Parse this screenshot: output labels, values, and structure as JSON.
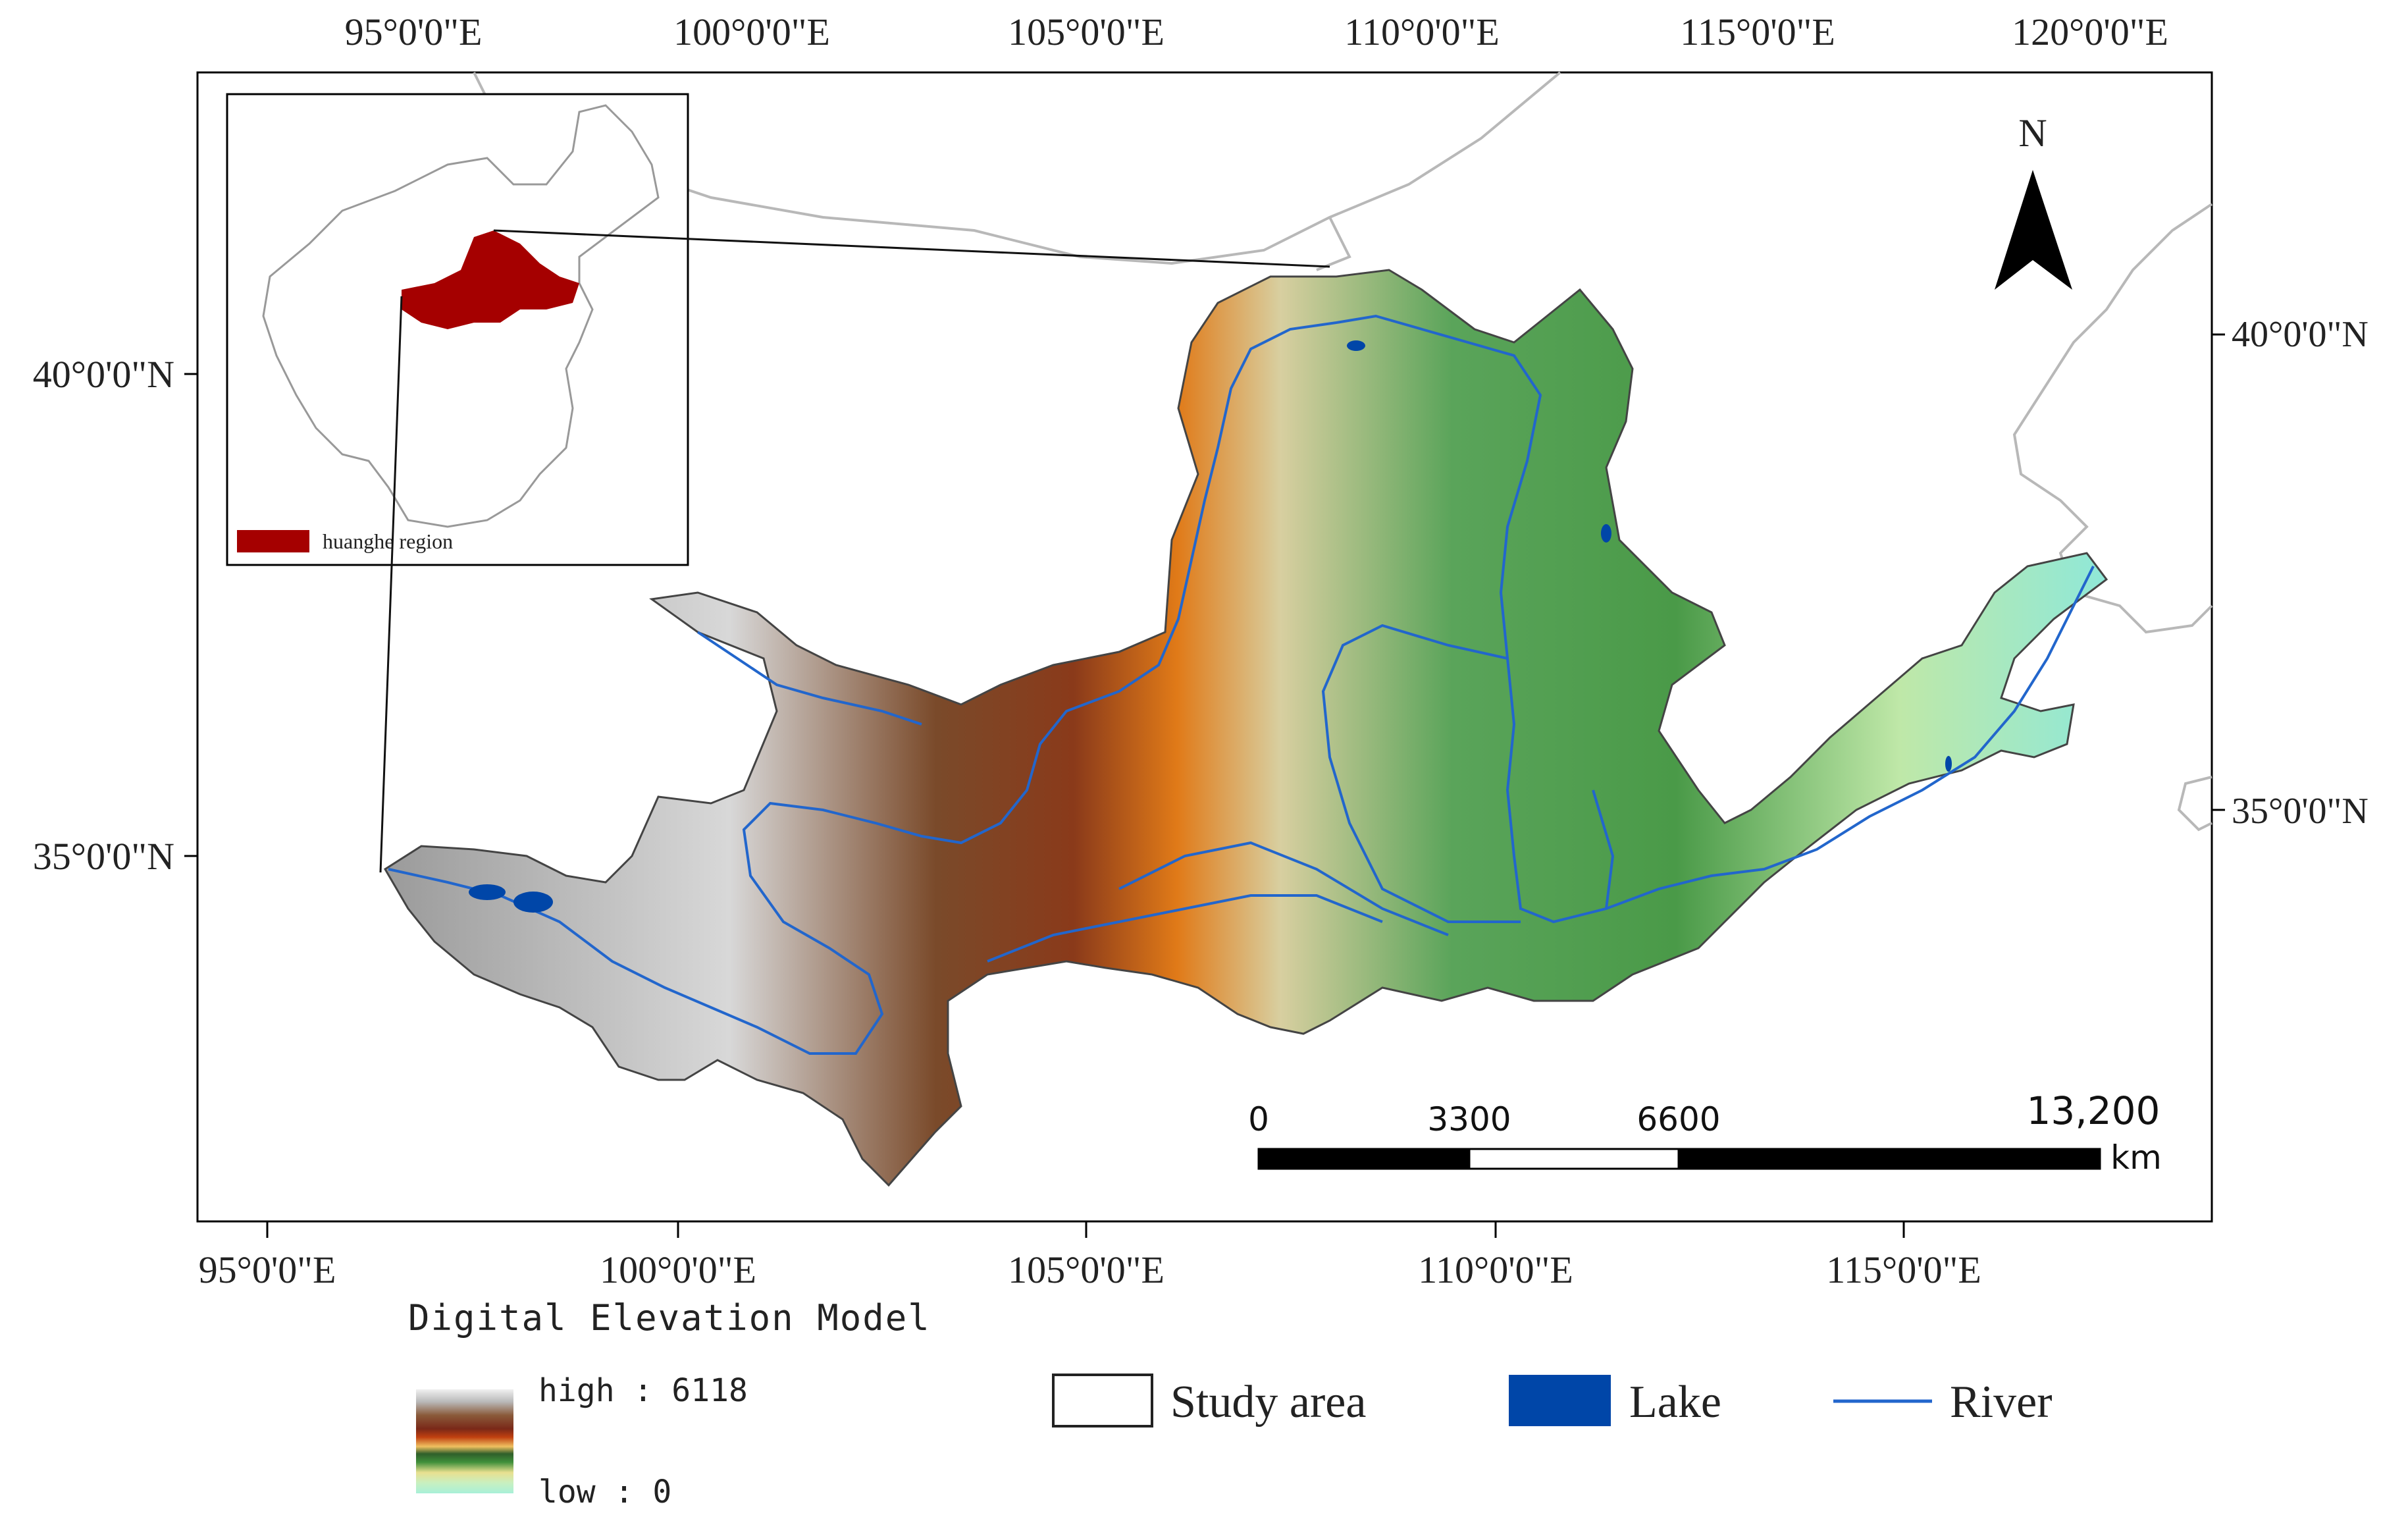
{
  "top_axis_labels": [
    "95°0'0\"E",
    "100°0'0\"E",
    "105°0'0\"E",
    "110°0'0\"E",
    "115°0'0\"E",
    "120°0'0\"E"
  ],
  "bottom_axis_labels": [
    "95°0'0\"E",
    "100°0'0\"E",
    "105°0'0\"E",
    "110°0'0\"E",
    "115°0'0\"E"
  ],
  "left_axis_labels": [
    "40°0'0\"N",
    "35°0'0\"N"
  ],
  "right_axis_labels": [
    "40°0'0\"N",
    "35°0'0\"N"
  ],
  "north_arrow": {
    "label": "N",
    "icon": "north-arrow-icon"
  },
  "scale_bar": {
    "ticks": [
      "0",
      "3300",
      "6600",
      "13,200"
    ],
    "unit": "km"
  },
  "inset": {
    "legend_label": "huanghe region",
    "highlight_color": "#a50000"
  },
  "dem_legend": {
    "title": "Digital Elevation Model",
    "high_label": "high : 6118",
    "low_label": "low : 0",
    "ramp_colors": [
      "#e8e8e8",
      "#b9b9b9",
      "#8a5a3a",
      "#7a3820",
      "#a04018",
      "#e07010",
      "#c8a050",
      "#2f7f3a",
      "#7ac060",
      "#f5f2c0",
      "#c8f0c8",
      "#a0f0e0"
    ]
  },
  "legend": {
    "study_area_label": "Study area",
    "lake_label": "Lake",
    "river_label": "River",
    "lake_color": "#0046a8",
    "river_color": "#2266cc"
  }
}
